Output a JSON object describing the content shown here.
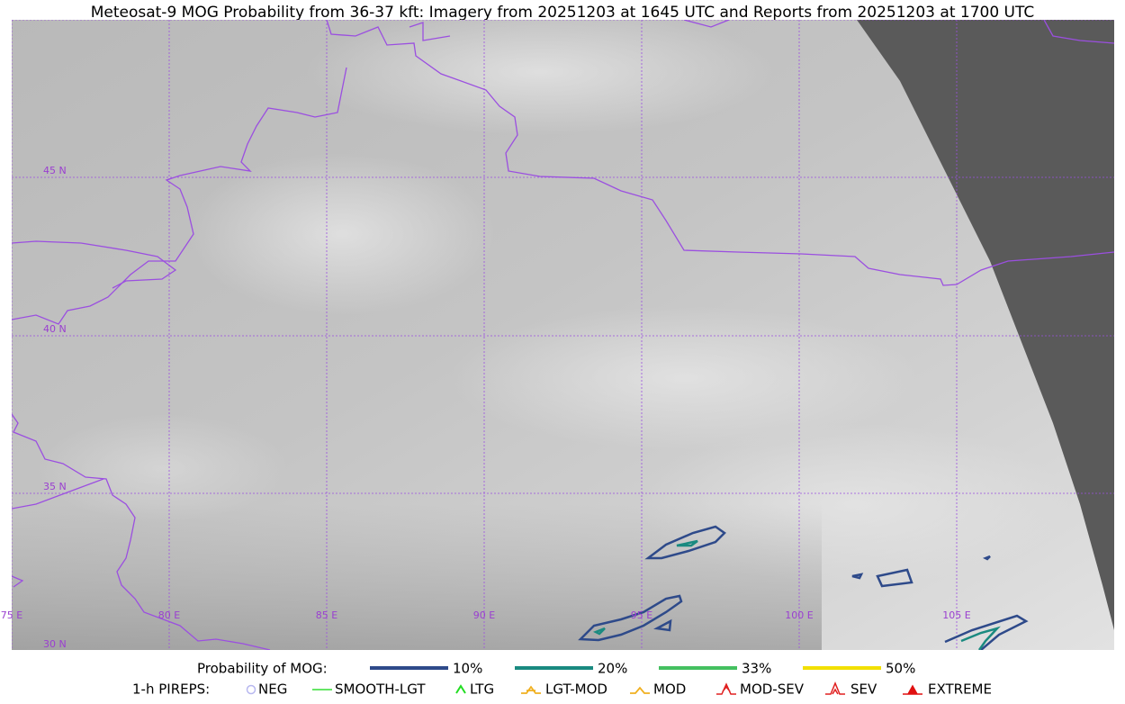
{
  "title": "Meteosat-9 MOG Probability from 36-37 kft: Imagery from 20251203 at 1645 UTC and Reports from 20251203 at 1700 UTC",
  "grid": {
    "lat_labels": [
      "45 N",
      "40 N",
      "35 N",
      "30 N"
    ],
    "lon_labels": [
      "75 E",
      "80 E",
      "85 E",
      "90 E",
      "95 E",
      "100 E",
      "105 E"
    ]
  },
  "legend": {
    "probability": {
      "label": "Probability of MOG:",
      "items": [
        "10%",
        "20%",
        "33%",
        "50%"
      ]
    },
    "pireps": {
      "label": "1-h PIREPS:",
      "items": [
        "NEG",
        "SMOOTH-LGT",
        "LTG",
        "LGT-MOD",
        "MOD",
        "MOD-SEV",
        "SEV",
        "EXTREME"
      ]
    }
  }
}
